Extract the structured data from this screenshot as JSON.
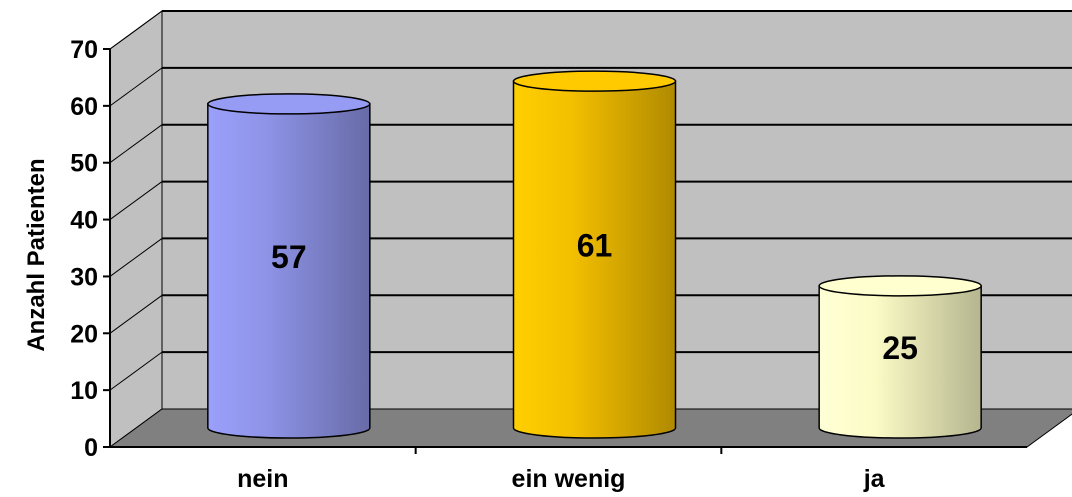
{
  "chart_data": {
    "type": "bar",
    "style": "3d-cylinder",
    "categories": [
      "nein",
      "ein wenig",
      "ja"
    ],
    "values": [
      57,
      61,
      25
    ],
    "data_labels": [
      "57",
      "61",
      "25"
    ],
    "colors": [
      "#8f94e8",
      "#f4c000",
      "#fbfbc6"
    ],
    "ylabel": "Anzahl Patienten",
    "ylim": [
      0,
      70
    ],
    "yticks": [
      "0",
      "10",
      "20",
      "30",
      "40",
      "50",
      "60",
      "70"
    ],
    "grid": true,
    "wall_color": "#c0c0c0",
    "floor_color": "#808080"
  }
}
